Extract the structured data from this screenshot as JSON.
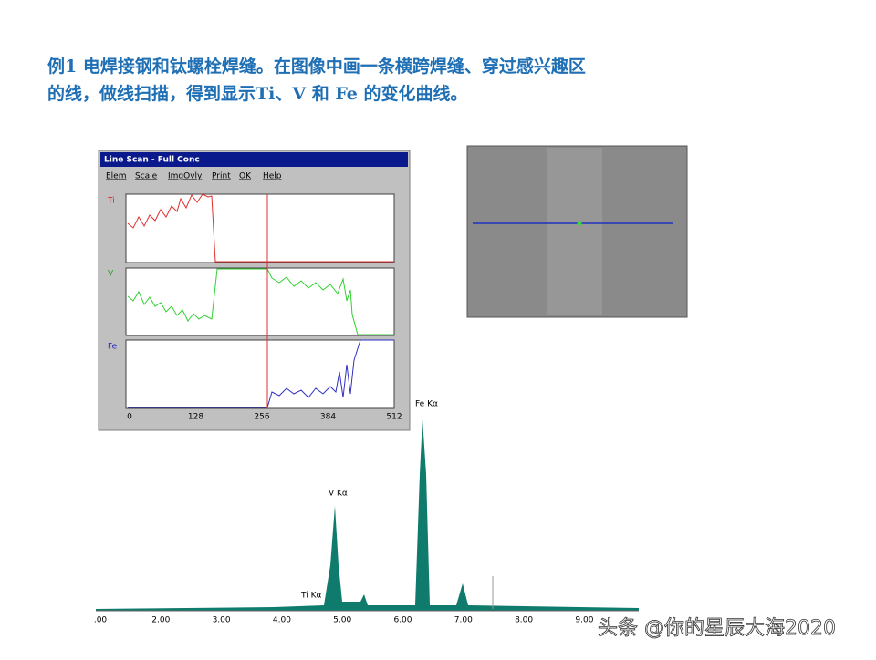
{
  "slide": {
    "title_lines": [
      "例1 电焊接钢和钛螺栓焊缝。在图像中画一条横跨焊缝、穿过感兴趣区",
      "的线，做线扫描，得到显示Ti、V 和 Fe 的变化曲线。"
    ],
    "window": {
      "title": "Line Scan - Full Conc",
      "menu": [
        "Elem",
        "Scale",
        "ImgOvly",
        "Print",
        "OK",
        "Help"
      ],
      "panels": [
        "Ti",
        "V",
        "Fe"
      ],
      "x_ticks": [
        "0",
        "128",
        "256",
        "384",
        "512"
      ]
    },
    "spectrum": {
      "peak_labels": [
        "V Kα",
        "Fe Kα",
        "Ti Kα"
      ],
      "x_ticks": [
        ".00",
        "2.00",
        "3.00",
        "4.00",
        "5.00",
        "6.00",
        "7.00",
        "8.00",
        "9.00"
      ]
    },
    "watermark": "头条 @你的星辰大海2020"
  }
}
